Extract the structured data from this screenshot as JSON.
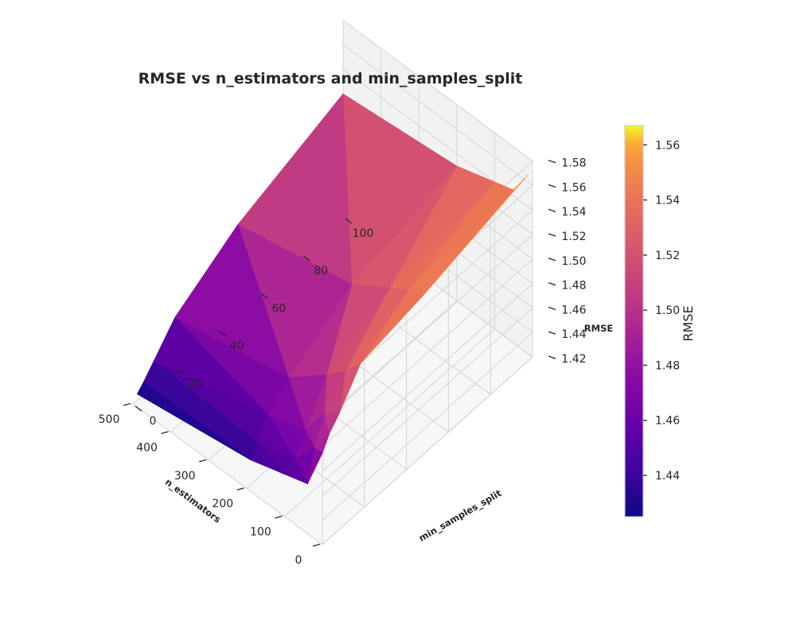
{
  "chart_data": {
    "type": "surface3d",
    "title": "RMSE vs n_estimators and min_samples_split",
    "xlabel": "n_estimators",
    "ylabel": "min_samples_split",
    "zlabel": "RMSE",
    "colorbar_label": "RMSE",
    "colormap": "plasma",
    "x_ticks": [
      "0",
      "100",
      "200",
      "300",
      "400",
      "500"
    ],
    "y_ticks": [
      "0",
      "20",
      "40",
      "60",
      "80",
      "100"
    ],
    "z_ticks": [
      "1.42",
      "1.44",
      "1.46",
      "1.48",
      "1.50",
      "1.52",
      "1.54",
      "1.56",
      "1.58"
    ],
    "colorbar_ticks": [
      "1.44",
      "1.46",
      "1.48",
      "1.50",
      "1.52",
      "1.54",
      "1.56"
    ],
    "xlim": [
      0,
      500
    ],
    "ylim": [
      0,
      100
    ],
    "zlim": [
      1.42,
      1.58
    ],
    "color_range": [
      1.425,
      1.567
    ],
    "n_estimators": [
      10,
      50,
      100,
      200,
      500
    ],
    "min_samples_split": [
      2,
      5,
      10,
      20,
      50,
      100
    ],
    "rmse": [
      [
        1.49,
        1.5,
        1.51,
        1.535,
        1.545,
        1.567
      ],
      [
        1.455,
        1.48,
        1.5,
        1.52,
        1.54,
        1.545
      ],
      [
        1.45,
        1.46,
        1.475,
        1.505,
        1.53,
        1.54
      ],
      [
        1.44,
        1.45,
        1.465,
        1.48,
        1.51,
        1.53
      ],
      [
        1.425,
        1.43,
        1.44,
        1.46,
        1.49,
        1.52
      ]
    ]
  }
}
